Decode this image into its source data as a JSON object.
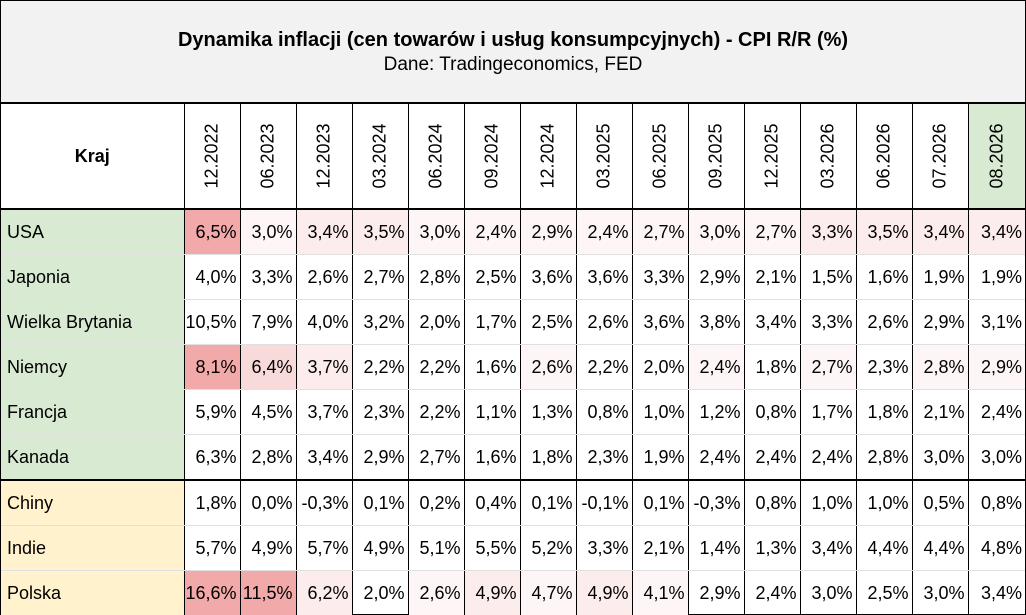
{
  "title": "Dynamika inflacji (cen towarów i usług konsumpcyjnych) - CPI R/R (%)",
  "subtitle": "Dane: Tradingeconomics, FED",
  "header": {
    "country_label": "Kraj",
    "periods": [
      "12.2022",
      "06.2023",
      "12.2023",
      "03.2024",
      "06.2024",
      "09.2024",
      "12.2024",
      "03.2025",
      "06.2025",
      "09.2025",
      "12.2025",
      "03.2026",
      "06.2026",
      "07.2026",
      "08.2026"
    ]
  },
  "colors": {
    "group1_country_bg": "#d9ead3",
    "group2_country_bg": "#fff2cc",
    "last_header_bg": "#d9ead3",
    "heat_strong": "#f2a9a9",
    "heat_medium": "#f9dada",
    "heat_light": "#fcecec",
    "heat_faint": "#fef6f6"
  },
  "rows": [
    {
      "country": "USA",
      "group": 1,
      "values": [
        "6,5%",
        "3,0%",
        "3,4%",
        "3,5%",
        "3,0%",
        "2,4%",
        "2,9%",
        "2,4%",
        "2,7%",
        "3,0%",
        "2,7%",
        "3,3%",
        "3,5%",
        "3,4%",
        "3,4%"
      ],
      "heat": [
        4,
        1,
        2,
        2,
        1,
        1,
        1,
        1,
        1,
        1,
        1,
        2,
        2,
        2,
        2
      ]
    },
    {
      "country": "Japonia",
      "group": 1,
      "values": [
        "4,0%",
        "3,3%",
        "2,6%",
        "2,7%",
        "2,8%",
        "2,5%",
        "3,6%",
        "3,6%",
        "3,3%",
        "2,9%",
        "2,1%",
        "1,5%",
        "1,6%",
        "1,9%",
        "1,9%"
      ],
      "heat": [
        0,
        0,
        0,
        0,
        0,
        0,
        0,
        0,
        0,
        0,
        0,
        0,
        0,
        0,
        0
      ]
    },
    {
      "country": "Wielka Brytania",
      "group": 1,
      "values": [
        "10,5%",
        "7,9%",
        "4,0%",
        "3,2%",
        "2,0%",
        "1,7%",
        "2,5%",
        "2,6%",
        "3,6%",
        "3,8%",
        "3,4%",
        "3,3%",
        "2,6%",
        "2,9%",
        "3,1%"
      ],
      "heat": [
        0,
        0,
        0,
        0,
        0,
        0,
        0,
        0,
        0,
        0,
        0,
        0,
        0,
        0,
        0
      ]
    },
    {
      "country": "Niemcy",
      "group": 1,
      "values": [
        "8,1%",
        "6,4%",
        "3,7%",
        "2,2%",
        "2,2%",
        "1,6%",
        "2,6%",
        "2,2%",
        "2,0%",
        "2,4%",
        "1,8%",
        "2,7%",
        "2,3%",
        "2,8%",
        "2,9%"
      ],
      "heat": [
        4,
        3,
        2,
        0,
        0,
        0,
        1,
        0,
        0,
        1,
        0,
        1,
        0,
        1,
        1
      ]
    },
    {
      "country": "Francja",
      "group": 1,
      "values": [
        "5,9%",
        "4,5%",
        "3,7%",
        "2,3%",
        "2,2%",
        "1,1%",
        "1,3%",
        "0,8%",
        "1,0%",
        "1,2%",
        "0,8%",
        "1,7%",
        "1,8%",
        "2,1%",
        "2,4%"
      ],
      "heat": [
        0,
        0,
        0,
        0,
        0,
        0,
        0,
        0,
        0,
        0,
        0,
        0,
        0,
        0,
        0
      ]
    },
    {
      "country": "Kanada",
      "group": 1,
      "values": [
        "6,3%",
        "2,8%",
        "3,4%",
        "2,9%",
        "2,7%",
        "1,6%",
        "1,8%",
        "2,3%",
        "1,9%",
        "2,4%",
        "2,4%",
        "2,4%",
        "2,8%",
        "3,0%",
        "3,0%"
      ],
      "heat": [
        0,
        0,
        0,
        0,
        0,
        0,
        0,
        0,
        0,
        0,
        0,
        0,
        0,
        0,
        0
      ]
    },
    {
      "country": "Chiny",
      "group": 2,
      "values": [
        "1,8%",
        "0,0%",
        "-0,3%",
        "0,1%",
        "0,2%",
        "0,4%",
        "0,1%",
        "-0,1%",
        "0,1%",
        "-0,3%",
        "0,8%",
        "1,0%",
        "1,0%",
        "0,5%",
        "0,8%"
      ],
      "heat": [
        0,
        0,
        0,
        0,
        0,
        0,
        0,
        0,
        0,
        0,
        0,
        0,
        0,
        0,
        0
      ]
    },
    {
      "country": "Indie",
      "group": 2,
      "values": [
        "5,7%",
        "4,9%",
        "5,7%",
        "4,9%",
        "5,1%",
        "5,5%",
        "5,2%",
        "3,3%",
        "2,1%",
        "1,4%",
        "1,3%",
        "3,4%",
        "4,4%",
        "4,4%",
        "4,8%"
      ],
      "heat": [
        0,
        0,
        0,
        0,
        0,
        0,
        0,
        0,
        0,
        0,
        0,
        0,
        0,
        0,
        0
      ]
    },
    {
      "country": "Polska",
      "group": 2,
      "values": [
        "16,6%",
        "11,5%",
        "6,2%",
        "2,0%",
        "2,6%",
        "4,9%",
        "4,7%",
        "4,9%",
        "4,1%",
        "2,9%",
        "2,4%",
        "3,0%",
        "2,5%",
        "3,0%",
        "3,4%"
      ],
      "heat": [
        4,
        4,
        2,
        0,
        1,
        2,
        1,
        2,
        1,
        0,
        0,
        0,
        0,
        0,
        0
      ]
    }
  ]
}
